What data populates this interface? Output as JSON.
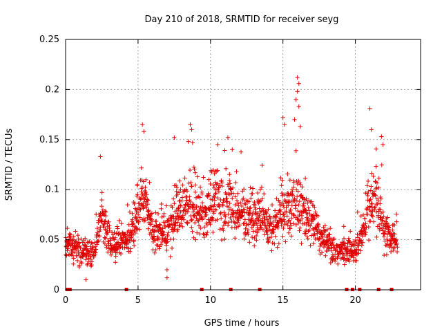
{
  "chart_data": {
    "type": "scatter",
    "title": "Day 210 of 2018, SRMTID for receiver seyg",
    "xlabel": "GPS time / hours",
    "ylabel": "SRMTID / TECUs",
    "xlim": [
      0,
      24.5
    ],
    "ylim": [
      0,
      0.25
    ],
    "xticks": [
      0,
      5,
      10,
      15,
      20
    ],
    "xtick_labels": [
      "0",
      "5",
      "10",
      "15",
      "20"
    ],
    "yticks": [
      0,
      0.05,
      0.1,
      0.15,
      0.2,
      0.25
    ],
    "ytick_labels": [
      "0",
      "0.05",
      "0.1",
      "0.15",
      "0.2",
      "0.25"
    ],
    "grid": true,
    "marker": "+",
    "color": "#e00000",
    "series": [
      {
        "name": "SRMTID",
        "profile_x": [
          0,
          0.5,
          1.0,
          1.5,
          2.0,
          2.3,
          2.5,
          3.0,
          3.5,
          4.0,
          4.5,
          5.0,
          5.3,
          5.6,
          6.0,
          6.5,
          7.0,
          7.5,
          8.0,
          8.6,
          9.0,
          9.5,
          10.0,
          10.5,
          11.0,
          11.5,
          12.0,
          12.5,
          13.0,
          13.5,
          14.0,
          14.5,
          15.0,
          15.5,
          16.0,
          16.5,
          17.0,
          17.5,
          18.0,
          18.5,
          19.0,
          19.5,
          20.0,
          20.5,
          21.0,
          21.5,
          22.0,
          22.5,
          22.9
        ],
        "profile_y": [
          0.042,
          0.045,
          0.04,
          0.038,
          0.04,
          0.06,
          0.075,
          0.05,
          0.045,
          0.05,
          0.055,
          0.08,
          0.095,
          0.085,
          0.06,
          0.055,
          0.055,
          0.075,
          0.082,
          0.085,
          0.08,
          0.078,
          0.085,
          0.09,
          0.08,
          0.09,
          0.078,
          0.07,
          0.07,
          0.075,
          0.06,
          0.06,
          0.085,
          0.08,
          0.09,
          0.08,
          0.065,
          0.055,
          0.048,
          0.042,
          0.04,
          0.038,
          0.04,
          0.055,
          0.085,
          0.09,
          0.06,
          0.05,
          0.05
        ],
        "highlights": [
          {
            "x": 2.4,
            "y": 0.133
          },
          {
            "x": 5.3,
            "y": 0.165
          },
          {
            "x": 5.4,
            "y": 0.158
          },
          {
            "x": 7.5,
            "y": 0.152
          },
          {
            "x": 8.6,
            "y": 0.165
          },
          {
            "x": 8.7,
            "y": 0.16
          },
          {
            "x": 10.5,
            "y": 0.145
          },
          {
            "x": 11.2,
            "y": 0.152
          },
          {
            "x": 11.5,
            "y": 0.14
          },
          {
            "x": 15.0,
            "y": 0.172
          },
          {
            "x": 15.1,
            "y": 0.165
          },
          {
            "x": 16.0,
            "y": 0.212
          },
          {
            "x": 16.1,
            "y": 0.206
          },
          {
            "x": 16.0,
            "y": 0.198
          },
          {
            "x": 15.9,
            "y": 0.19
          },
          {
            "x": 16.1,
            "y": 0.183
          },
          {
            "x": 15.8,
            "y": 0.17
          },
          {
            "x": 16.2,
            "y": 0.163
          },
          {
            "x": 21.0,
            "y": 0.181
          },
          {
            "x": 21.1,
            "y": 0.16
          },
          {
            "x": 21.8,
            "y": 0.153
          },
          {
            "x": 21.9,
            "y": 0.145
          },
          {
            "x": 1.4,
            "y": 0.01
          },
          {
            "x": 7.0,
            "y": 0.012
          },
          {
            "x": 7.0,
            "y": 0.02
          }
        ],
        "gap_markers_x": [
          0.1,
          0.3,
          4.2,
          9.4,
          11.4,
          13.4,
          19.4,
          19.8,
          20.3,
          21.6,
          22.5
        ]
      }
    ]
  }
}
